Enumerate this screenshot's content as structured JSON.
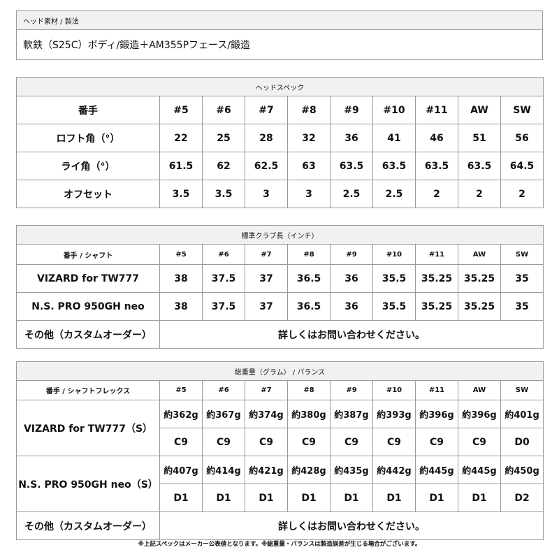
{
  "material": {
    "title": "ヘッド素材 / 製法",
    "value": "軟鉄（S25C）ボディ/鍛造＋AM355Pフェース/鍛造"
  },
  "head_spec": {
    "title": "ヘッドスペック",
    "columns": [
      "番手",
      "#5",
      "#6",
      "#7",
      "#8",
      "#9",
      "#10",
      "#11",
      "AW",
      "SW"
    ],
    "rows": [
      [
        "ロフト角（°）",
        "22",
        "25",
        "28",
        "32",
        "36",
        "41",
        "46",
        "51",
        "56"
      ],
      [
        "ライ角（°）",
        "61.5",
        "62",
        "62.5",
        "63",
        "63.5",
        "63.5",
        "63.5",
        "63.5",
        "64.5"
      ],
      [
        "オフセット",
        "3.5",
        "3.5",
        "3",
        "3",
        "2.5",
        "2.5",
        "2",
        "2",
        "2"
      ]
    ]
  },
  "club_length": {
    "title": "標準クラブ長（インチ）",
    "columns": [
      "番手 / シャフト",
      "#5",
      "#6",
      "#7",
      "#8",
      "#9",
      "#10",
      "#11",
      "AW",
      "SW"
    ],
    "rows": [
      [
        "VIZARD for TW777",
        "38",
        "37.5",
        "37",
        "36.5",
        "36",
        "35.5",
        "35.25",
        "35.25",
        "35"
      ],
      [
        "N.S. PRO 950GH neo",
        "38",
        "37.5",
        "37",
        "36.5",
        "36",
        "35.5",
        "35.25",
        "35.25",
        "35"
      ]
    ],
    "other_label": "その他（カスタムオーダー）",
    "other_value": "詳しくはお問い合わせください。"
  },
  "weight_balance": {
    "title": "総重量（グラム） / バランス",
    "columns": [
      "番手 / シャフトフレックス",
      "#5",
      "#6",
      "#7",
      "#8",
      "#9",
      "#10",
      "#11",
      "AW",
      "SW"
    ],
    "shafts": [
      {
        "label": "VIZARD for TW777（S）",
        "weights": [
          "約362g",
          "約367g",
          "約374g",
          "約380g",
          "約387g",
          "約393g",
          "約396g",
          "約396g",
          "約401g"
        ],
        "balances": [
          "C9",
          "C9",
          "C9",
          "C9",
          "C9",
          "C9",
          "C9",
          "C9",
          "D0"
        ]
      },
      {
        "label": "N.S. PRO 950GH neo（S）",
        "weights": [
          "約407g",
          "約414g",
          "約421g",
          "約428g",
          "約435g",
          "約442g",
          "約445g",
          "約445g",
          "約450g"
        ],
        "balances": [
          "D1",
          "D1",
          "D1",
          "D1",
          "D1",
          "D1",
          "D1",
          "D1",
          "D2"
        ]
      }
    ],
    "other_label": "その他（カスタムオーダー）",
    "other_value": "詳しくはお問い合わせください。"
  },
  "footer_note": "※上記スペックはメーカー公表値となります。※総重量・バランスは製造誤差が生じる場合がございます。"
}
